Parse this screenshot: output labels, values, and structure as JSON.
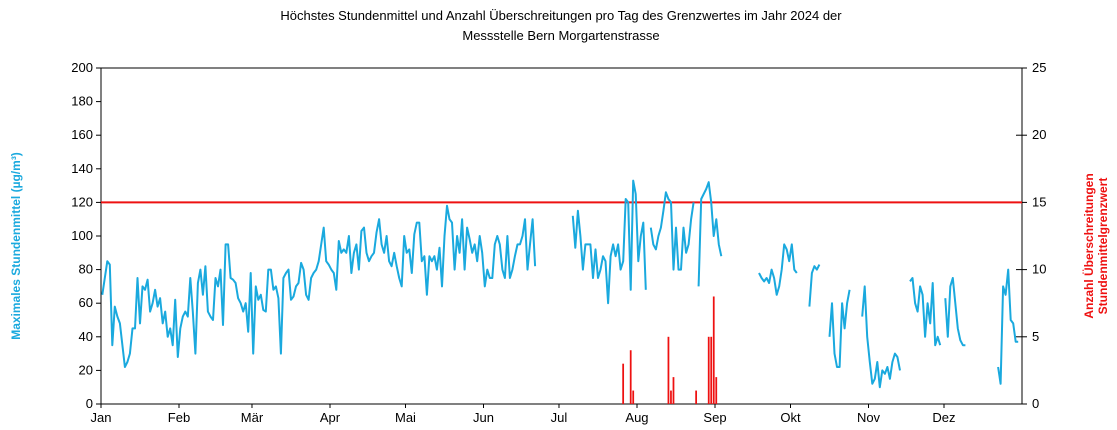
{
  "chart_data": {
    "type": "line-bar",
    "title": [
      "Höchstes Stundenmittel und Anzahl Überschreitungen pro Tag des Grenzwertes im Jahr 2024 der",
      "Messstelle Bern Morgartenstrasse"
    ],
    "y_label": "Maximales Stundenmittel (µg/m³)",
    "y2_label": [
      "Anzahl Überschreitungen",
      "Stundenmittelgrenzwert"
    ],
    "xlim": [
      0,
      366
    ],
    "xticks": [
      {
        "value": 0,
        "label": "Jan"
      },
      {
        "value": 31,
        "label": "Feb"
      },
      {
        "value": 60,
        "label": "Mär"
      },
      {
        "value": 91,
        "label": "Apr"
      },
      {
        "value": 121,
        "label": "Mai"
      },
      {
        "value": 152,
        "label": "Jun"
      },
      {
        "value": 182,
        "label": "Jul"
      },
      {
        "value": 213,
        "label": "Aug"
      },
      {
        "value": 244,
        "label": "Sep"
      },
      {
        "value": 274,
        "label": "Okt"
      },
      {
        "value": 305,
        "label": "Nov"
      },
      {
        "value": 335,
        "label": "Dez"
      }
    ],
    "ylim": [
      0,
      200
    ],
    "yticks": [
      0,
      20,
      40,
      60,
      80,
      100,
      120,
      140,
      160,
      180,
      200
    ],
    "y2lim": [
      0,
      25
    ],
    "y2ticks": [
      0,
      5,
      10,
      15,
      20,
      25
    ],
    "threshold": 120,
    "threshold_color": "#ee1111",
    "series": [
      {
        "name": "Maximales Stundenmittel",
        "color": "#1aa9de",
        "kind": "line",
        "values": [
          65,
          75,
          85,
          83,
          35,
          58,
          52,
          48,
          35,
          22,
          25,
          30,
          45,
          45,
          75,
          48,
          70,
          68,
          74,
          55,
          60,
          68,
          58,
          63,
          48,
          55,
          40,
          45,
          35,
          62,
          28,
          45,
          52,
          55,
          52,
          75,
          55,
          30,
          72,
          80,
          65,
          82,
          55,
          52,
          50,
          75,
          70,
          80,
          47,
          95,
          95,
          75,
          74,
          72,
          63,
          60,
          55,
          60,
          43,
          78,
          30,
          70,
          62,
          65,
          56,
          55,
          80,
          80,
          68,
          70,
          63,
          30,
          75,
          78,
          80,
          62,
          64,
          70,
          72,
          84,
          80,
          65,
          62,
          75,
          78,
          80,
          85,
          95,
          105,
          85,
          83,
          80,
          78,
          68,
          97,
          90,
          92,
          90,
          100,
          78,
          90,
          95,
          80,
          103,
          105,
          90,
          85,
          88,
          90,
          102,
          110,
          95,
          90,
          100,
          85,
          82,
          90,
          82,
          75,
          70,
          100,
          90,
          92,
          78,
          101,
          108,
          108,
          85,
          88,
          65,
          88,
          85,
          88,
          80,
          93,
          70,
          100,
          118,
          110,
          108,
          80,
          100,
          90,
          110,
          80,
          105,
          98,
          90,
          95,
          85,
          100,
          90,
          70,
          80,
          75,
          75,
          95,
          100,
          95,
          80,
          75,
          100,
          75,
          80,
          88,
          95,
          95,
          100,
          110,
          80,
          95,
          110,
          82,
          null,
          null,
          null,
          null,
          null,
          null,
          null,
          null,
          null,
          null,
          null,
          null,
          null,
          null,
          112,
          93,
          115,
          100,
          80,
          95,
          95,
          95,
          75,
          92,
          75,
          80,
          88,
          85,
          60,
          88,
          95,
          88,
          95,
          80,
          85,
          122,
          120,
          68,
          133,
          125,
          85,
          100,
          108,
          68,
          null,
          105,
          95,
          92,
          100,
          105,
          115,
          126,
          122,
          120,
          80,
          105,
          80,
          80,
          105,
          90,
          95,
          110,
          120,
          null,
          70,
          122,
          125,
          128,
          132,
          120,
          100,
          110,
          95,
          88,
          null,
          null,
          null,
          null,
          null,
          null,
          null,
          null,
          null,
          null,
          null,
          null,
          null,
          null,
          78,
          75,
          73,
          75,
          72,
          80,
          75,
          65,
          70,
          80,
          95,
          92,
          85,
          95,
          80,
          78,
          null,
          null,
          null,
          null,
          58,
          78,
          82,
          80,
          83,
          null,
          null,
          null,
          40,
          60,
          30,
          22,
          22,
          60,
          45,
          60,
          68,
          null,
          null,
          null,
          null,
          52,
          70,
          40,
          25,
          12,
          15,
          25,
          10,
          20,
          18,
          22,
          15,
          25,
          30,
          28,
          20,
          null,
          null,
          null,
          73,
          75,
          60,
          55,
          70,
          65,
          40,
          60,
          48,
          72,
          35,
          40,
          35,
          null,
          63,
          40,
          70,
          75,
          60,
          45,
          38,
          35,
          35,
          null,
          null,
          null,
          null,
          null,
          null,
          null,
          null,
          null,
          null,
          null,
          null,
          22,
          12,
          70,
          65,
          80,
          50,
          48,
          37,
          37,
          null
        ]
      },
      {
        "name": "Anzahl Überschreitungen",
        "color": "#ee1111",
        "kind": "bar",
        "axis": "y2",
        "x": [
          207,
          210,
          211,
          225,
          226,
          227,
          236,
          241,
          242,
          243,
          244
        ],
        "values": [
          3,
          4,
          1,
          5,
          1,
          2,
          1,
          5,
          5,
          8,
          2
        ]
      }
    ]
  }
}
